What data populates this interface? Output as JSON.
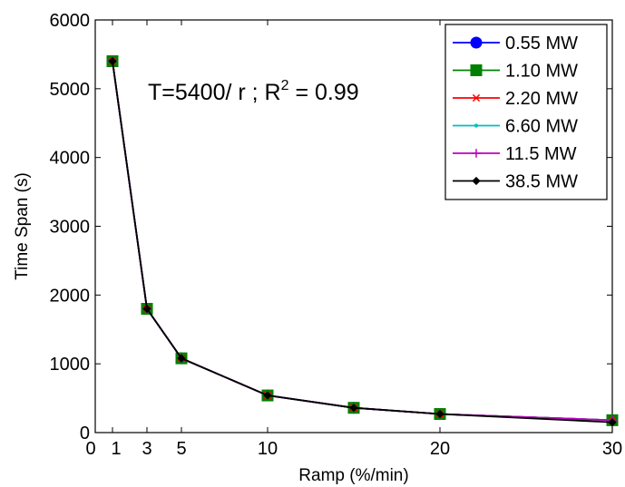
{
  "chart_data": {
    "type": "line",
    "xlabel": "Ramp (%/min)",
    "ylabel": "Time Span (s)",
    "xlim": [
      0,
      30
    ],
    "ylim": [
      0,
      6000
    ],
    "xticks": [
      0,
      1,
      3,
      5,
      10,
      20,
      30
    ],
    "xtick_labels": [
      "0",
      "1",
      "3",
      "5",
      "10",
      "20",
      "30"
    ],
    "yticks": [
      0,
      1000,
      2000,
      3000,
      4000,
      5000,
      6000
    ],
    "ytick_labels": [
      "0",
      "1000",
      "2000",
      "3000",
      "4000",
      "5000",
      "6000"
    ],
    "annotation": {
      "main": "T=5400/ r ; R",
      "superscript": "2",
      "tail": " = 0.99"
    },
    "legend_position": "top-right",
    "grid": false,
    "x": [
      1,
      3,
      5,
      10,
      15,
      20,
      30
    ],
    "series": [
      {
        "name": "0.55 MW",
        "color": "#0000ff",
        "marker": "circle",
        "values": [
          5400,
          1800,
          1080,
          540,
          360,
          270,
          180
        ]
      },
      {
        "name": "1.10 MW",
        "color": "#008000",
        "marker": "square",
        "values": [
          5400,
          1800,
          1080,
          540,
          360,
          270,
          180
        ]
      },
      {
        "name": "2.20 MW",
        "color": "#ff0000",
        "marker": "x",
        "values": [
          5400,
          1800,
          1080,
          540,
          360,
          270,
          180
        ]
      },
      {
        "name": "6.60 MW",
        "color": "#00bfbf",
        "marker": "dot",
        "values": [
          5400,
          1800,
          1080,
          540,
          360,
          270,
          180
        ]
      },
      {
        "name": "11.5 MW",
        "color": "#bf00bf",
        "marker": "plus",
        "values": [
          5400,
          1800,
          1080,
          540,
          360,
          270,
          180
        ]
      },
      {
        "name": "38.5 MW",
        "color": "#000000",
        "marker": "diamond",
        "values": [
          5400,
          1800,
          1080,
          540,
          360,
          270,
          150
        ]
      }
    ]
  }
}
